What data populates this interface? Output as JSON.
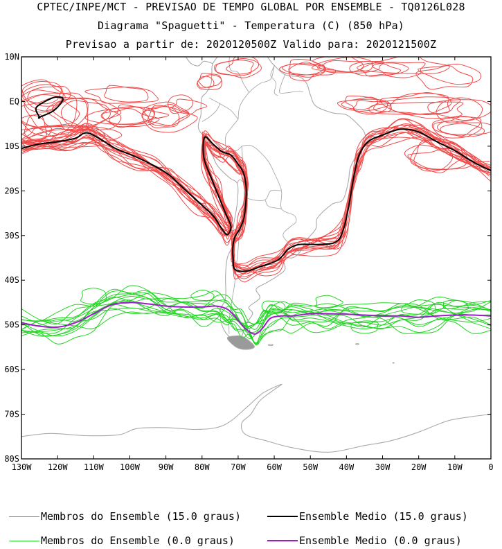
{
  "header": {
    "line1": "CPTEC/INPE/MCT - PREVISAO DE TEMPO GLOBAL POR ENSEMBLE - TQ0126L028",
    "line2": "Diagrama \"Spaguetti\" - Temperatura (C) (850 hPa)",
    "line3": "Previsao a partir de: 2020120500Z  Valido para: 2020121500Z"
  },
  "map": {
    "lon_range": [
      -130,
      0
    ],
    "lat_range": [
      -80,
      10
    ],
    "y_ticks": [
      "10N",
      "EQ",
      "10S",
      "20S",
      "30S",
      "40S",
      "50S",
      "60S",
      "70S",
      "80S"
    ],
    "x_ticks": [
      "130W",
      "120W",
      "110W",
      "100W",
      "90W",
      "80W",
      "70W",
      "60W",
      "50W",
      "40W",
      "30W",
      "20W",
      "10W",
      "0"
    ],
    "coast_color": "#a9a9a9",
    "border_color": "#a9a9a9"
  },
  "legend": {
    "members_15_label": "Membros do Ensemble (15.0 graus)",
    "mean_15_label": "Ensemble Medio (15.0 graus)",
    "members_0_label": "Membros do Ensemble (0.0 graus)",
    "mean_0_label": "Ensemble Medio (0.0 graus)",
    "colors": {
      "members_15": "#f04a4a",
      "mean_15": "#000000",
      "members_0": "#22d422",
      "mean_0": "#9a1ec8"
    }
  }
}
